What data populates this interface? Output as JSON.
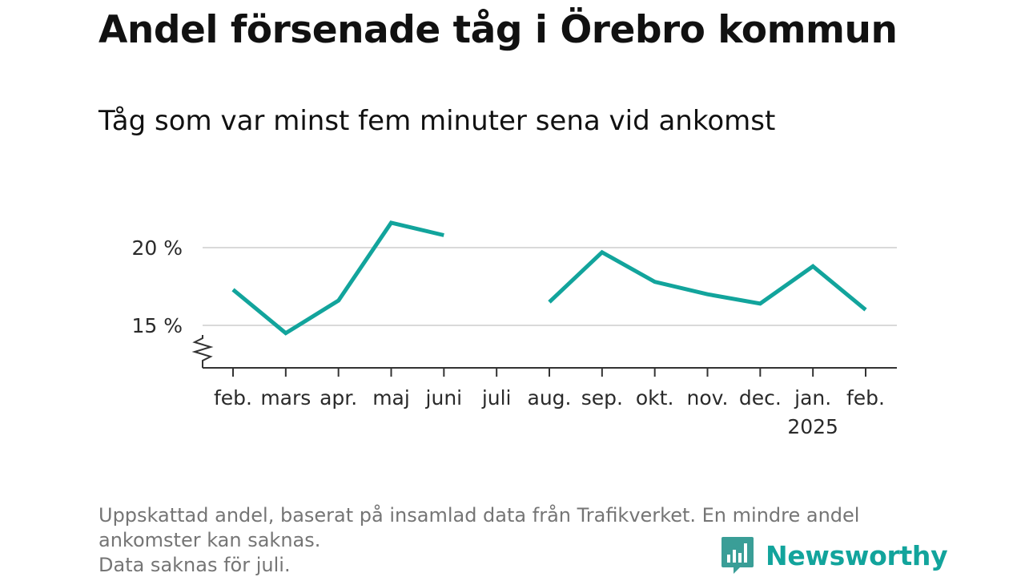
{
  "header": {
    "title": "Andel försenade tåg i Örebro kommun",
    "subtitle": "Tåg som var minst fem minuter sena vid ankomst"
  },
  "chart_data": {
    "type": "line",
    "title": "Andel försenade tåg i Örebro kommun",
    "subtitle": "Tåg som var minst fem minuter sena vid ankomst",
    "xlabel": "",
    "ylabel": "",
    "categories": [
      "feb.",
      "mars",
      "apr.",
      "maj",
      "juni",
      "juli",
      "aug.",
      "sep.",
      "okt.",
      "nov.",
      "dec.",
      "jan.",
      "feb."
    ],
    "year_labels": [
      "",
      "",
      "",
      "",
      "",
      "",
      "",
      "",
      "",
      "",
      "",
      "2025",
      ""
    ],
    "series": [
      {
        "values": [
          17.3,
          14.5,
          16.6,
          21.6,
          20.8,
          null,
          16.5,
          19.7,
          17.8,
          17.0,
          16.4,
          18.8,
          16.0
        ],
        "color": "#12a49c"
      }
    ],
    "y_ticks": [
      15,
      20
    ],
    "y_tick_labels": [
      "15 %",
      "20 %"
    ],
    "ylim": [
      12.4,
      22.5
    ],
    "axis_break": true,
    "grid": true,
    "legend": "none"
  },
  "footer": {
    "note_line1": "Uppskattad andel, baserat på insamlad data från Trafikverket. En mindre andel",
    "note_line2": "ankomster kan saknas.",
    "note_line3": "Data saknas för juli.",
    "brand": "Newsworthy",
    "brand_color": "#12a49c",
    "brand_icon": "bar-chart-speech-bubble-icon"
  }
}
